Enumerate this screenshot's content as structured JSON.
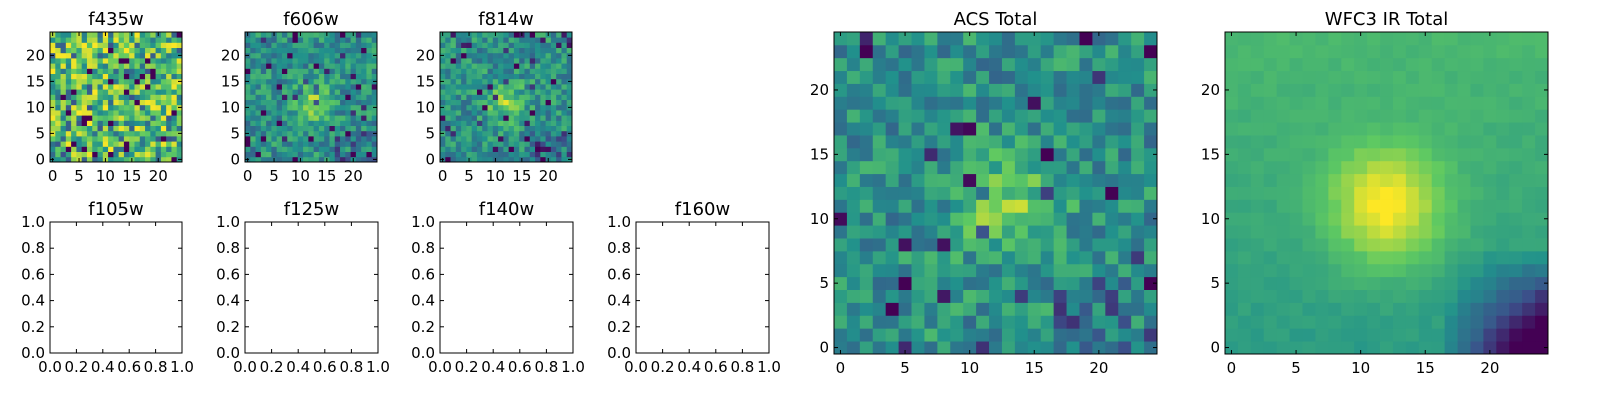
{
  "figure": {
    "colormap": [
      "#440154",
      "#3b528b",
      "#21918c",
      "#5ec962",
      "#fde725"
    ]
  },
  "chart_data": [
    {
      "id": "f435w",
      "type": "heatmap",
      "title": "f435w",
      "grid": [
        25,
        25
      ],
      "xlim": [
        0,
        24
      ],
      "ylim": [
        0,
        24
      ],
      "xticks": [
        "0",
        "5",
        "10",
        "15",
        "20"
      ],
      "yticks": [
        "0",
        "5",
        "10",
        "15",
        "20"
      ],
      "pattern": "noise",
      "source_center": [
        12,
        12
      ],
      "seed": 11
    },
    {
      "id": "f606w",
      "type": "heatmap",
      "title": "f606w",
      "grid": [
        25,
        25
      ],
      "xlim": [
        0,
        24
      ],
      "ylim": [
        0,
        24
      ],
      "xticks": [
        "0",
        "5",
        "10",
        "15",
        "20"
      ],
      "yticks": [
        "0",
        "5",
        "10",
        "15",
        "20"
      ],
      "pattern": "faint-source",
      "source_center": [
        12,
        11
      ],
      "seed": 23
    },
    {
      "id": "f814w",
      "type": "heatmap",
      "title": "f814w",
      "grid": [
        25,
        25
      ],
      "xlim": [
        0,
        24
      ],
      "ylim": [
        0,
        24
      ],
      "xticks": [
        "0",
        "5",
        "10",
        "15",
        "20"
      ],
      "yticks": [
        "0",
        "5",
        "10",
        "15",
        "20"
      ],
      "pattern": "faint-source",
      "source_center": [
        12,
        11
      ],
      "seed": 37
    },
    {
      "id": "f105w",
      "type": "scatter",
      "title": "f105w",
      "empty": true,
      "xlim": [
        0,
        1
      ],
      "ylim": [
        0,
        1
      ],
      "xticks": [
        "0.0",
        "0.2",
        "0.4",
        "0.6",
        "0.8",
        "1.0"
      ],
      "yticks": [
        "0.0",
        "0.2",
        "0.4",
        "0.6",
        "0.8",
        "1.0"
      ]
    },
    {
      "id": "f125w",
      "type": "scatter",
      "title": "f125w",
      "empty": true,
      "xlim": [
        0,
        1
      ],
      "ylim": [
        0,
        1
      ],
      "xticks": [
        "0.0",
        "0.2",
        "0.4",
        "0.6",
        "0.8",
        "1.0"
      ],
      "yticks": [
        "0.0",
        "0.2",
        "0.4",
        "0.6",
        "0.8",
        "1.0"
      ]
    },
    {
      "id": "f140w",
      "type": "scatter",
      "title": "f140w",
      "empty": true,
      "xlim": [
        0,
        1
      ],
      "ylim": [
        0,
        1
      ],
      "xticks": [
        "0.0",
        "0.2",
        "0.4",
        "0.6",
        "0.8",
        "1.0"
      ],
      "yticks": [
        "0.0",
        "0.2",
        "0.4",
        "0.6",
        "0.8",
        "1.0"
      ]
    },
    {
      "id": "f160w",
      "type": "scatter",
      "title": "f160w",
      "empty": true,
      "xlim": [
        0,
        1
      ],
      "ylim": [
        0,
        1
      ],
      "xticks": [
        "0.0",
        "0.2",
        "0.4",
        "0.6",
        "0.8",
        "1.0"
      ],
      "yticks": [
        "0.0",
        "0.2",
        "0.4",
        "0.6",
        "0.8",
        "1.0"
      ]
    },
    {
      "id": "acs-total",
      "type": "heatmap",
      "title": "ACS Total",
      "grid": [
        25,
        25
      ],
      "xlim": [
        0,
        24
      ],
      "ylim": [
        0,
        24
      ],
      "xticks": [
        "0",
        "5",
        "10",
        "15",
        "20"
      ],
      "yticks": [
        "0",
        "5",
        "10",
        "15",
        "20"
      ],
      "pattern": "faint-source",
      "source_center": [
        13,
        11
      ],
      "seed": 53
    },
    {
      "id": "wfc3-ir-total",
      "type": "heatmap",
      "title": "WFC3 IR Total",
      "grid": [
        25,
        25
      ],
      "xlim": [
        0,
        24
      ],
      "ylim": [
        0,
        24
      ],
      "xticks": [
        "0",
        "5",
        "10",
        "15",
        "20"
      ],
      "yticks": [
        "0",
        "5",
        "10",
        "15",
        "20"
      ],
      "pattern": "smooth-source",
      "source_center": [
        12,
        11
      ],
      "seed": 71
    }
  ]
}
